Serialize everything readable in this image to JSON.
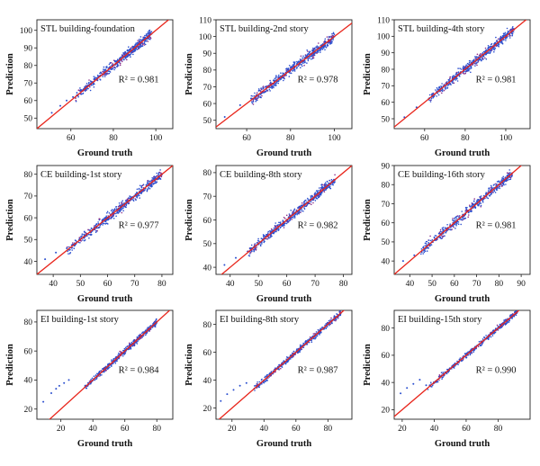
{
  "chart_data": [
    {
      "type": "scatter",
      "title": "STL building-foundation",
      "xlabel": "Ground truth",
      "ylabel": "Prediction",
      "xlim": [
        44,
        108
      ],
      "ylim": [
        44,
        106
      ],
      "xticks": [
        60,
        80,
        100
      ],
      "yticks": [
        50,
        60,
        70,
        80,
        90,
        100
      ],
      "r2_label": "R² = 0.981",
      "r2_value": 0.981,
      "identity_line": true,
      "n_points": 520,
      "x_core": [
        62,
        98
      ],
      "spread": 2.0,
      "x": [
        51,
        55,
        58,
        61,
        65,
        70,
        75,
        80,
        85,
        90,
        95,
        98
      ],
      "y": [
        53,
        57,
        60,
        62,
        66,
        70,
        75,
        80,
        85,
        90,
        95,
        98
      ]
    },
    {
      "type": "scatter",
      "title": "STL building-2nd story",
      "xlabel": "Ground truth",
      "ylabel": "Prediction",
      "xlim": [
        46,
        108
      ],
      "ylim": [
        45,
        110
      ],
      "xticks": [
        60,
        80,
        100
      ],
      "yticks": [
        50,
        60,
        70,
        80,
        90,
        100,
        110
      ],
      "r2_label": "R² = 0.978",
      "r2_value": 0.978,
      "identity_line": true,
      "n_points": 520,
      "x_core": [
        62,
        100
      ],
      "spread": 2.1,
      "x": [
        50,
        57,
        62,
        65,
        70,
        75,
        80,
        85,
        90,
        95,
        100
      ],
      "y": [
        52,
        59,
        63,
        65,
        70,
        75,
        80,
        85,
        90,
        95,
        100
      ]
    },
    {
      "type": "scatter",
      "title": "STL building-4th story",
      "xlabel": "Ground truth",
      "ylabel": "Prediction",
      "xlim": [
        45,
        112
      ],
      "ylim": [
        44,
        110
      ],
      "xticks": [
        60,
        80,
        100
      ],
      "yticks": [
        50,
        60,
        70,
        80,
        90,
        100,
        110
      ],
      "r2_label": "R² = 0.981",
      "r2_value": 0.981,
      "identity_line": true,
      "n_points": 520,
      "x_core": [
        62,
        104
      ],
      "spread": 2.0,
      "x": [
        50,
        56,
        62,
        66,
        70,
        75,
        80,
        85,
        90,
        95,
        100,
        104
      ],
      "y": [
        51,
        57,
        62,
        66,
        70,
        75,
        80,
        85,
        90,
        95,
        100,
        104
      ]
    },
    {
      "type": "scatter",
      "title": "CE building-1st story",
      "xlabel": "Ground truth",
      "ylabel": "Prediction",
      "xlim": [
        34,
        84
      ],
      "ylim": [
        34,
        84
      ],
      "xticks": [
        40,
        50,
        60,
        70,
        80
      ],
      "yticks": [
        40,
        50,
        60,
        70,
        80
      ],
      "r2_label": "R² = 0.977",
      "r2_value": 0.977,
      "identity_line": true,
      "n_points": 520,
      "x_core": [
        45,
        80
      ],
      "spread": 1.6,
      "x": [
        37,
        41,
        45,
        50,
        55,
        60,
        65,
        70,
        75,
        80
      ],
      "y": [
        41,
        44,
        46,
        50,
        55,
        60,
        65,
        70,
        75,
        80
      ]
    },
    {
      "type": "scatter",
      "title": "CE building-8th story",
      "xlabel": "Ground truth",
      "ylabel": "Prediction",
      "xlim": [
        35,
        83
      ],
      "ylim": [
        37,
        83
      ],
      "xticks": [
        40,
        50,
        60,
        70,
        80
      ],
      "yticks": [
        40,
        50,
        60,
        70,
        80
      ],
      "r2_label": "R² = 0.982",
      "r2_value": 0.982,
      "identity_line": true,
      "n_points": 520,
      "x_core": [
        46,
        77
      ],
      "spread": 1.4,
      "x": [
        38,
        42,
        47,
        50,
        55,
        60,
        65,
        70,
        75,
        77
      ],
      "y": [
        41,
        44,
        48,
        50,
        55,
        60,
        65,
        70,
        75,
        77
      ]
    },
    {
      "type": "scatter",
      "title": "CE building-16th story",
      "xlabel": "Ground truth",
      "ylabel": "Prediction",
      "xlim": [
        33,
        94
      ],
      "ylim": [
        33,
        90
      ],
      "xticks": [
        40,
        50,
        60,
        70,
        80,
        90
      ],
      "yticks": [
        40,
        50,
        60,
        70,
        80,
        90
      ],
      "r2_label": "R² = 0.981",
      "r2_value": 0.981,
      "identity_line": true,
      "n_points": 520,
      "x_core": [
        45,
        86
      ],
      "spread": 1.9,
      "x": [
        37,
        42,
        46,
        50,
        55,
        60,
        65,
        70,
        75,
        80,
        86
      ],
      "y": [
        40,
        43,
        47,
        50,
        55,
        60,
        65,
        70,
        75,
        80,
        86
      ]
    },
    {
      "type": "scatter",
      "title": "EI building-1st story",
      "xlabel": "Ground truth",
      "ylabel": "Prediction",
      "xlim": [
        5,
        90
      ],
      "ylim": [
        13,
        88
      ],
      "xticks": [
        20,
        40,
        60,
        80
      ],
      "yticks": [
        20,
        40,
        60,
        80
      ],
      "r2_label": "R² = 0.984",
      "r2_value": 0.984,
      "identity_line": true,
      "n_points": 460,
      "x_core": [
        35,
        80
      ],
      "spread": 1.5,
      "x": [
        9,
        14,
        17,
        19,
        22,
        25,
        35,
        40,
        50,
        60,
        70,
        80
      ],
      "y": [
        25,
        31,
        34,
        36,
        38,
        40,
        35,
        40,
        50,
        60,
        70,
        80
      ]
    },
    {
      "type": "scatter",
      "title": "EI building-8th story",
      "xlabel": "Ground truth",
      "ylabel": "Prediction",
      "xlim": [
        10,
        95
      ],
      "ylim": [
        12,
        90
      ],
      "xticks": [
        20,
        40,
        60,
        80
      ],
      "yticks": [
        20,
        40,
        60,
        80
      ],
      "r2_label": "R² = 0.987",
      "r2_value": 0.987,
      "identity_line": true,
      "n_points": 460,
      "x_core": [
        34,
        88
      ],
      "spread": 1.5,
      "x": [
        13,
        17,
        21,
        25,
        29,
        34,
        40,
        50,
        60,
        70,
        80,
        88
      ],
      "y": [
        25,
        30,
        33,
        36,
        38,
        34,
        40,
        50,
        60,
        70,
        80,
        88
      ]
    },
    {
      "type": "scatter",
      "title": "EI building-15th story",
      "xlabel": "Ground truth",
      "ylabel": "Prediction",
      "xlim": [
        15,
        100
      ],
      "ylim": [
        13,
        93
      ],
      "xticks": [
        20,
        40,
        60,
        80
      ],
      "yticks": [
        20,
        40,
        60,
        80
      ],
      "r2_label": "R² = 0.990",
      "r2_value": 0.99,
      "identity_line": true,
      "n_points": 460,
      "x_core": [
        36,
        92
      ],
      "spread": 1.4,
      "x": [
        19,
        23,
        27,
        31,
        35,
        40,
        50,
        60,
        70,
        80,
        92
      ],
      "y": [
        32,
        36,
        39,
        42,
        38,
        40,
        50,
        60,
        70,
        80,
        92
      ]
    }
  ],
  "colors": {
    "points": "#2b4fcf",
    "points_dense": "#8a2f8a",
    "identity": "#e8251b",
    "axes": "#222222"
  }
}
